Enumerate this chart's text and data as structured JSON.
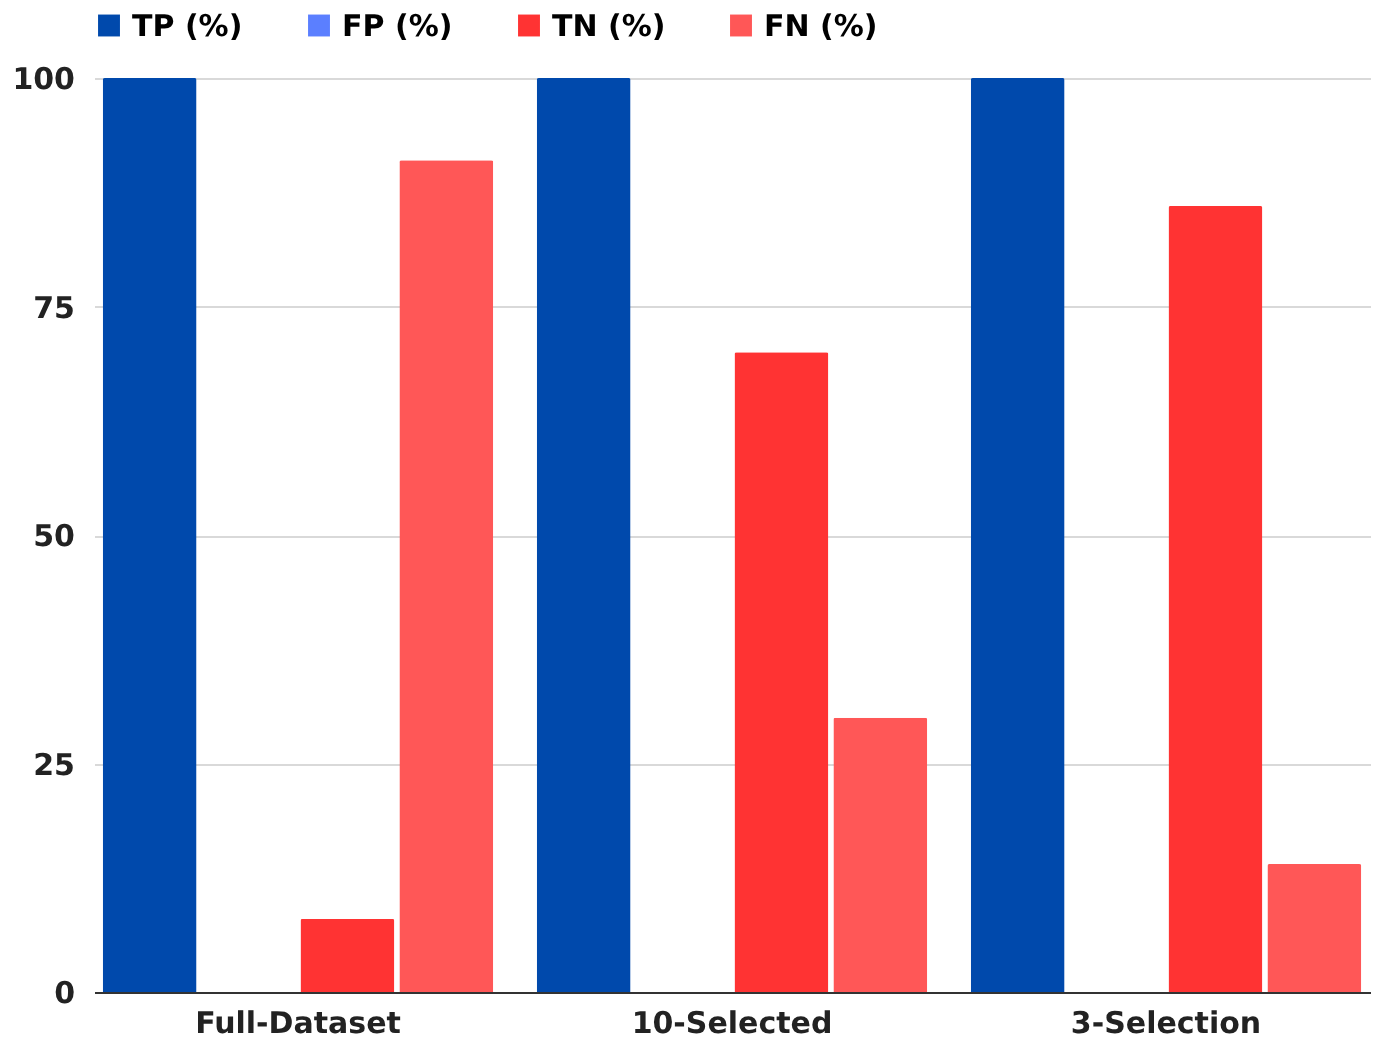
{
  "chart_data": {
    "type": "bar",
    "categories": [
      "Full-Dataset",
      "10-Selected",
      "3-Selection"
    ],
    "series": [
      {
        "name": "TP (%)",
        "color": "#0049ac",
        "values": [
          100,
          100,
          100
        ]
      },
      {
        "name": "FP (%)",
        "color": "#5b7fff",
        "values": [
          0,
          0,
          0
        ]
      },
      {
        "name": "TN (%)",
        "color": "#ff3333",
        "values": [
          8,
          70,
          86
        ]
      },
      {
        "name": "FN (%)",
        "color": "#ff5757",
        "values": [
          91,
          30,
          14
        ]
      }
    ],
    "ylim": [
      0,
      100
    ],
    "yticks": [
      0,
      25,
      50,
      75,
      100
    ],
    "grid": "y",
    "legend": "top"
  }
}
